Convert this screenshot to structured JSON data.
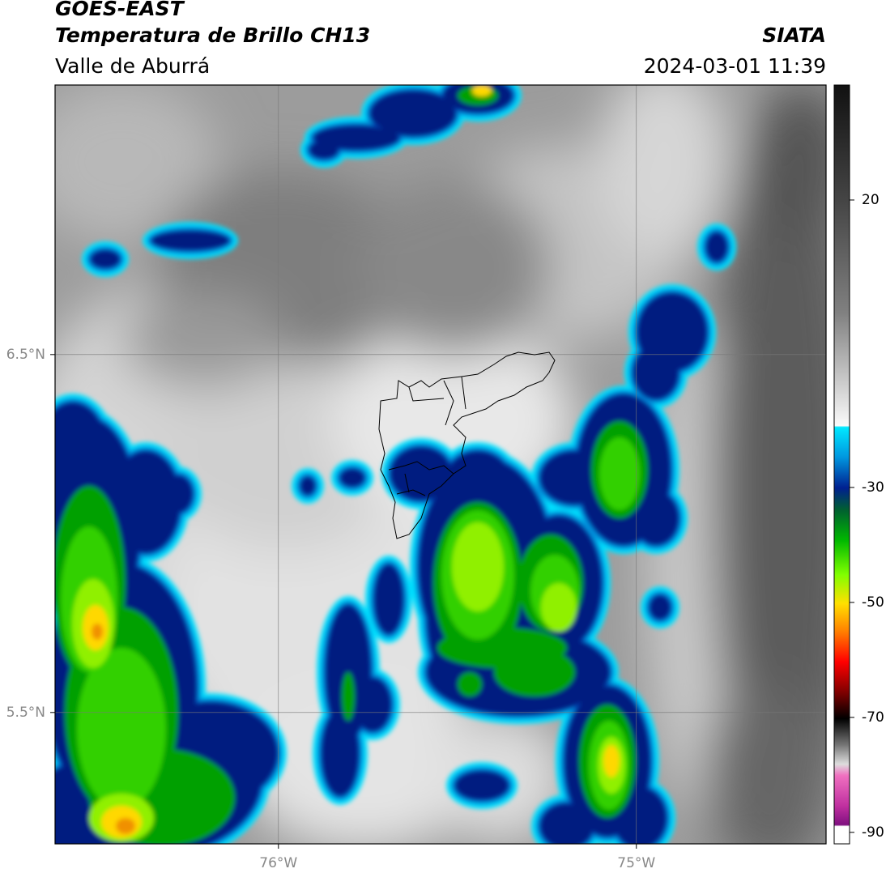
{
  "header": {
    "title": "GOES-EAST",
    "subtitle": "Temperatura de Brillo CH13",
    "region": "Valle de Aburrá",
    "source": "SIATA",
    "timestamp": "2024-03-01 11:39"
  },
  "map": {
    "xlim": [
      -76.624,
      -74.47
    ],
    "ylim": [
      5.133,
      7.253
    ],
    "xticks": [
      {
        "value": -76,
        "label": "76°W"
      },
      {
        "value": -75,
        "label": "75°W"
      }
    ],
    "yticks": [
      {
        "value": 6.5,
        "label": "6.5°N"
      },
      {
        "value": 5.5,
        "label": "5.5°N"
      }
    ],
    "grid": true
  },
  "colorbar": {
    "lim": [
      -92,
      40
    ],
    "ticks": [
      20,
      -30,
      -50,
      -70,
      -90
    ]
  }
}
